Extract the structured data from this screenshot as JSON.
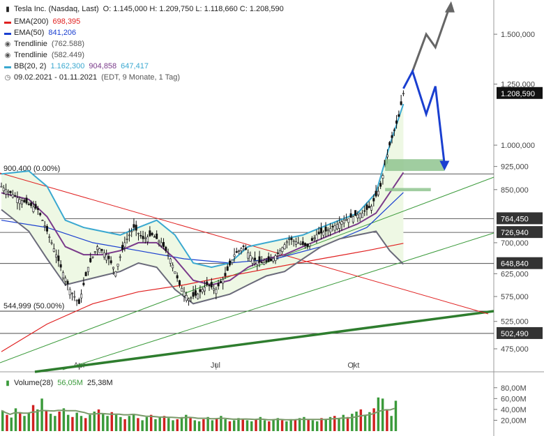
{
  "header": {
    "title": "Tesla Inc. (Nasdaq, Last)",
    "ohlc": "O: 1.145,000  H: 1.209,750  L: 1.118,660  C: 1.208,590",
    "legend": [
      {
        "name": "EMA(200)",
        "value": "698,395",
        "color": "#e02020",
        "icon": "line-icon"
      },
      {
        "name": "EMA(50)",
        "value": "841,206",
        "color": "#1a3fd0",
        "icon": "line-icon"
      },
      {
        "name": "Trendlinie",
        "value": "(762.588)",
        "color": "#555555",
        "icon": "target-icon"
      },
      {
        "name": "Trendlinie",
        "value": "(582.449)",
        "color": "#555555",
        "icon": "target-icon"
      },
      {
        "name": "BB(20, 2)",
        "value": "1.162,300",
        "value2": "904,858",
        "value3": "647,417",
        "color": "#3aa8d0",
        "icon": "line-icon"
      },
      {
        "name": "09.02.2021 - 01.11.2021",
        "value": "(EDT, 9 Monate, 1 Tag)",
        "color": "#555555",
        "icon": "clock-icon"
      }
    ]
  },
  "chart_data": [
    {
      "type": "line",
      "title": "Tesla Inc. (Nasdaq, Last)",
      "y_scale": "log",
      "ylim": [
        440,
        1700
      ],
      "y_ticks": [
        "1.500,000",
        "1.250,000",
        "1.000,000",
        "925,000",
        "850,000",
        "700,000",
        "625,000",
        "575,000",
        "525,000",
        "475,000"
      ],
      "x_ticks": [
        "Apr",
        "Jul",
        "Okt"
      ],
      "x_range": [
        "2021-02-09",
        "2021-11-01"
      ],
      "last_price": {
        "label": "1.208,590",
        "value": 1208.59
      },
      "levels": [
        {
          "label": "764,450",
          "value": 764.45
        },
        {
          "label": "726,940",
          "value": 726.94
        },
        {
          "label": "648,840",
          "value": 648.84
        },
        {
          "label": "502,490",
          "value": 502.49
        }
      ],
      "fib_levels": [
        {
          "label": "900,400 (0.00%)",
          "value": 900.4
        },
        {
          "label": "544,999 (50.00%)",
          "value": 544.999
        }
      ],
      "series": [
        {
          "name": "EMA(200)",
          "color": "#e02020"
        },
        {
          "name": "EMA(50)",
          "color": "#1a3fd0"
        },
        {
          "name": "BB(20, 2)",
          "color": "#3aa8d0"
        },
        {
          "name": "Trendlinie",
          "color": "#3a9a3a"
        }
      ],
      "price_path": [
        {
          "t": 0,
          "v": 860
        },
        {
          "t": 4,
          "v": 820
        },
        {
          "t": 8,
          "v": 790
        },
        {
          "t": 11,
          "v": 700
        },
        {
          "t": 13,
          "v": 640
        },
        {
          "t": 15,
          "v": 590
        },
        {
          "t": 17,
          "v": 560
        },
        {
          "t": 19,
          "v": 640
        },
        {
          "t": 21,
          "v": 690
        },
        {
          "t": 23,
          "v": 670
        },
        {
          "t": 25,
          "v": 630
        },
        {
          "t": 27,
          "v": 700
        },
        {
          "t": 29,
          "v": 740
        },
        {
          "t": 31,
          "v": 710
        },
        {
          "t": 33,
          "v": 720
        },
        {
          "t": 35,
          "v": 700
        },
        {
          "t": 37,
          "v": 660
        },
        {
          "t": 39,
          "v": 600
        },
        {
          "t": 41,
          "v": 570
        },
        {
          "t": 43,
          "v": 580
        },
        {
          "t": 45,
          "v": 600
        },
        {
          "t": 47,
          "v": 590
        },
        {
          "t": 49,
          "v": 620
        },
        {
          "t": 51,
          "v": 670
        },
        {
          "t": 53,
          "v": 690
        },
        {
          "t": 55,
          "v": 660
        },
        {
          "t": 57,
          "v": 650
        },
        {
          "t": 59,
          "v": 655
        },
        {
          "t": 61,
          "v": 680
        },
        {
          "t": 63,
          "v": 710
        },
        {
          "t": 65,
          "v": 700
        },
        {
          "t": 67,
          "v": 690
        },
        {
          "t": 69,
          "v": 720
        },
        {
          "t": 71,
          "v": 730
        },
        {
          "t": 73,
          "v": 745
        },
        {
          "t": 75,
          "v": 760
        },
        {
          "t": 77,
          "v": 770
        },
        {
          "t": 79,
          "v": 780
        },
        {
          "t": 81,
          "v": 800
        },
        {
          "t": 83,
          "v": 860
        },
        {
          "t": 85,
          "v": 1000
        },
        {
          "t": 87,
          "v": 1110
        },
        {
          "t": 88,
          "v": 1208.59
        }
      ],
      "ema200_path": [
        {
          "t": 0,
          "v": 470
        },
        {
          "t": 10,
          "v": 520
        },
        {
          "t": 20,
          "v": 560
        },
        {
          "t": 30,
          "v": 585
        },
        {
          "t": 40,
          "v": 600
        },
        {
          "t": 50,
          "v": 620
        },
        {
          "t": 60,
          "v": 640
        },
        {
          "t": 70,
          "v": 660
        },
        {
          "t": 80,
          "v": 680
        },
        {
          "t": 88,
          "v": 698.395
        }
      ],
      "ema50_path": [
        {
          "t": 0,
          "v": 760
        },
        {
          "t": 10,
          "v": 740
        },
        {
          "t": 20,
          "v": 700
        },
        {
          "t": 30,
          "v": 680
        },
        {
          "t": 40,
          "v": 660
        },
        {
          "t": 50,
          "v": 650
        },
        {
          "t": 60,
          "v": 660
        },
        {
          "t": 70,
          "v": 690
        },
        {
          "t": 80,
          "v": 740
        },
        {
          "t": 88,
          "v": 841.206
        }
      ],
      "bb_upper_path": [
        {
          "t": 0,
          "v": 900
        },
        {
          "t": 6,
          "v": 910
        },
        {
          "t": 10,
          "v": 860
        },
        {
          "t": 14,
          "v": 760
        },
        {
          "t": 18,
          "v": 740
        },
        {
          "t": 22,
          "v": 730
        },
        {
          "t": 26,
          "v": 720
        },
        {
          "t": 30,
          "v": 740
        },
        {
          "t": 34,
          "v": 760
        },
        {
          "t": 38,
          "v": 720
        },
        {
          "t": 42,
          "v": 650
        },
        {
          "t": 46,
          "v": 640
        },
        {
          "t": 50,
          "v": 650
        },
        {
          "t": 54,
          "v": 690
        },
        {
          "t": 58,
          "v": 700
        },
        {
          "t": 62,
          "v": 710
        },
        {
          "t": 66,
          "v": 720
        },
        {
          "t": 70,
          "v": 740
        },
        {
          "t": 74,
          "v": 760
        },
        {
          "t": 78,
          "v": 780
        },
        {
          "t": 82,
          "v": 840
        },
        {
          "t": 85,
          "v": 1000
        },
        {
          "t": 88,
          "v": 1162.3
        }
      ],
      "bb_middle_path": [
        {
          "t": 0,
          "v": 840
        },
        {
          "t": 6,
          "v": 820
        },
        {
          "t": 10,
          "v": 770
        },
        {
          "t": 14,
          "v": 690
        },
        {
          "t": 18,
          "v": 670
        },
        {
          "t": 22,
          "v": 670
        },
        {
          "t": 26,
          "v": 680
        },
        {
          "t": 30,
          "v": 700
        },
        {
          "t": 34,
          "v": 700
        },
        {
          "t": 38,
          "v": 660
        },
        {
          "t": 42,
          "v": 610
        },
        {
          "t": 46,
          "v": 600
        },
        {
          "t": 50,
          "v": 610
        },
        {
          "t": 54,
          "v": 640
        },
        {
          "t": 58,
          "v": 660
        },
        {
          "t": 62,
          "v": 670
        },
        {
          "t": 66,
          "v": 690
        },
        {
          "t": 70,
          "v": 710
        },
        {
          "t": 74,
          "v": 730
        },
        {
          "t": 78,
          "v": 750
        },
        {
          "t": 82,
          "v": 780
        },
        {
          "t": 85,
          "v": 840
        },
        {
          "t": 88,
          "v": 904.858
        }
      ],
      "bb_lower_path": [
        {
          "t": 0,
          "v": 790
        },
        {
          "t": 6,
          "v": 730
        },
        {
          "t": 10,
          "v": 660
        },
        {
          "t": 14,
          "v": 600
        },
        {
          "t": 18,
          "v": 610
        },
        {
          "t": 22,
          "v": 620
        },
        {
          "t": 26,
          "v": 630
        },
        {
          "t": 30,
          "v": 650
        },
        {
          "t": 34,
          "v": 640
        },
        {
          "t": 38,
          "v": 590
        },
        {
          "t": 42,
          "v": 560
        },
        {
          "t": 46,
          "v": 570
        },
        {
          "t": 50,
          "v": 580
        },
        {
          "t": 54,
          "v": 600
        },
        {
          "t": 58,
          "v": 620
        },
        {
          "t": 62,
          "v": 630
        },
        {
          "t": 66,
          "v": 660
        },
        {
          "t": 70,
          "v": 690
        },
        {
          "t": 74,
          "v": 710
        },
        {
          "t": 78,
          "v": 720
        },
        {
          "t": 82,
          "v": 730
        },
        {
          "t": 85,
          "v": 680
        },
        {
          "t": 88,
          "v": 647.417
        }
      ],
      "forecast_grey": [
        {
          "t": 90,
          "v": 1310
        },
        {
          "t": 93,
          "v": 1500
        },
        {
          "t": 95,
          "v": 1430
        },
        {
          "t": 98,
          "v": 1650
        }
      ],
      "forecast_blue": [
        {
          "t": 88,
          "v": 1230
        },
        {
          "t": 90,
          "v": 1310
        },
        {
          "t": 93,
          "v": 1120
        },
        {
          "t": 95,
          "v": 1240
        },
        {
          "t": 97,
          "v": 930
        }
      ],
      "zones": [
        {
          "from": 910,
          "to": 950,
          "t0": 84,
          "t1": 97
        },
        {
          "from": 845,
          "to": 855,
          "t0": 84,
          "t1": 94
        }
      ]
    },
    {
      "type": "bar",
      "title": "Volume(28)",
      "legend_values": [
        "56,05M",
        "25,38M"
      ],
      "y_ticks": [
        "80,00M",
        "60,00M",
        "40,00M",
        "20,00M"
      ],
      "ylim": [
        0,
        90
      ],
      "values_millions": [
        38,
        30,
        25,
        42,
        35,
        28,
        33,
        48,
        40,
        60,
        38,
        32,
        28,
        36,
        42,
        30,
        26,
        34,
        28,
        24,
        30,
        36,
        40,
        32,
        28,
        35,
        30,
        26,
        22,
        28,
        32,
        24,
        20,
        26,
        30,
        22,
        26,
        28,
        24,
        20,
        22,
        26,
        30,
        24,
        20,
        18,
        22,
        26,
        20,
        24,
        28,
        22,
        18,
        20,
        24,
        22,
        20,
        18,
        22,
        26,
        20,
        18,
        22,
        24,
        20,
        18,
        22,
        20,
        24,
        26,
        22,
        20,
        18,
        24,
        22,
        26,
        28,
        24,
        30,
        26,
        32,
        36,
        40,
        30,
        35,
        42,
        62,
        60,
        40,
        28,
        56
      ]
    }
  ],
  "volume_legend": "Volume(28)"
}
